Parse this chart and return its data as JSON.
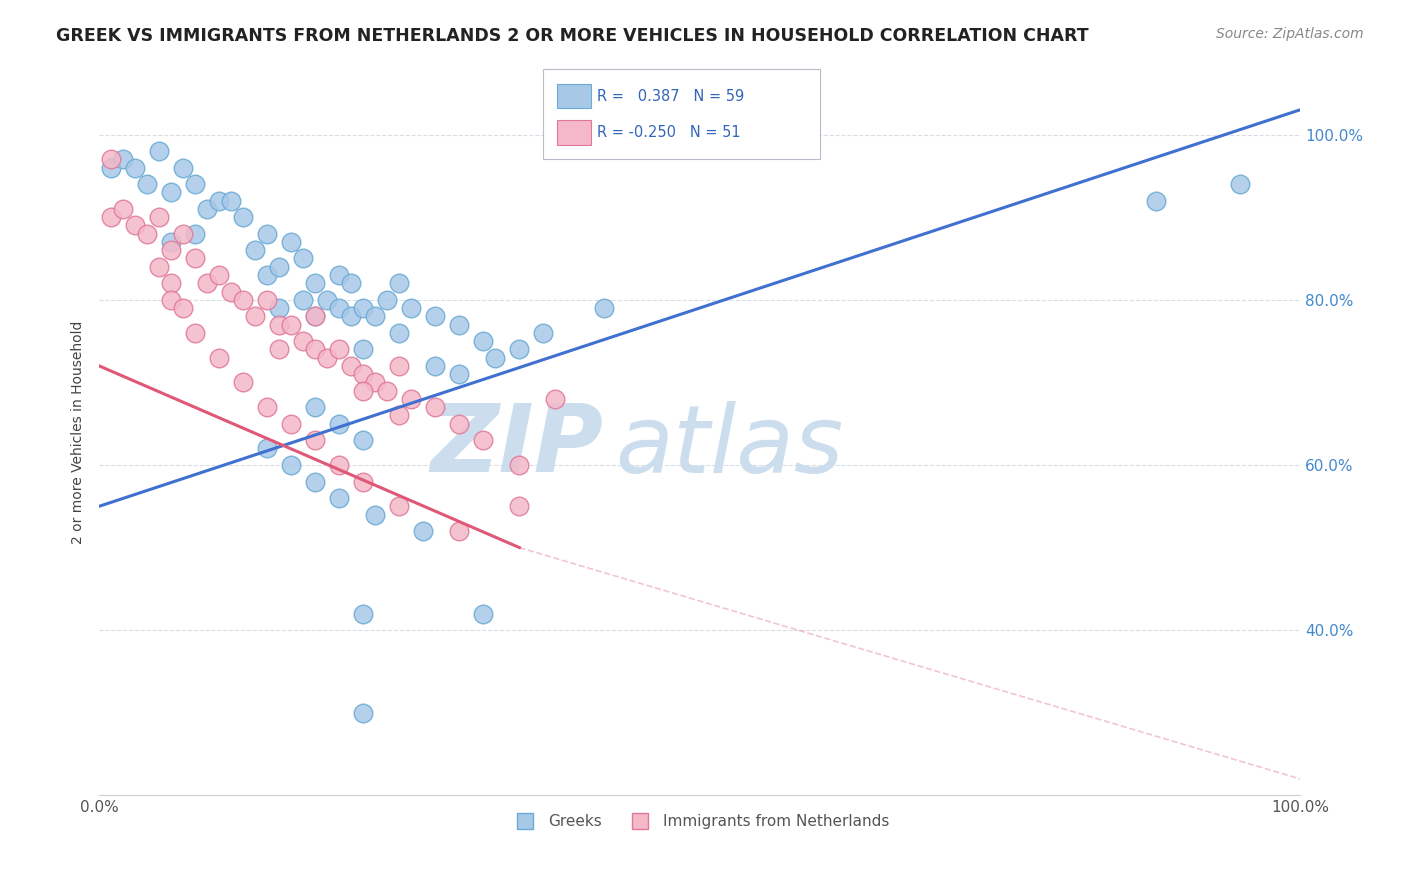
{
  "title": "GREEK VS IMMIGRANTS FROM NETHERLANDS 2 OR MORE VEHICLES IN HOUSEHOLD CORRELATION CHART",
  "source": "Source: ZipAtlas.com",
  "ylabel": "2 or more Vehicles in Household",
  "xlim": [
    0,
    100
  ],
  "ylim": [
    20,
    108
  ],
  "yticks": [
    40,
    60,
    80,
    100
  ],
  "ytick_labels": [
    "40.0%",
    "60.0%",
    "80.0%",
    "100.0%"
  ],
  "xticks": [
    0,
    100
  ],
  "xtick_labels": [
    "0.0%",
    "100.0%"
  ],
  "blue_R": 0.387,
  "blue_N": 59,
  "pink_R": -0.25,
  "pink_N": 51,
  "blue_color": "#a8c8e8",
  "blue_edge": "#6aaad4",
  "pink_color": "#f4b8c8",
  "pink_edge": "#e07898",
  "blue_line_color": "#4070d0",
  "pink_line_color": "#e05878",
  "watermark_color": "#ccdded",
  "legend_label_blue": "Greeks",
  "legend_label_pink": "Immigrants from Netherlands",
  "background_color": "#ffffff",
  "grid_color": "#d8dde8",
  "blue_points_x": [
    1,
    2,
    3,
    4,
    5,
    6,
    6,
    7,
    8,
    8,
    9,
    10,
    11,
    12,
    13,
    14,
    14,
    15,
    15,
    16,
    17,
    17,
    18,
    18,
    19,
    20,
    20,
    21,
    21,
    22,
    23,
    24,
    25,
    26,
    28,
    30,
    32,
    35,
    22,
    25,
    28,
    30,
    33,
    37,
    42,
    18,
    20,
    22,
    14,
    16,
    18,
    20,
    23,
    27,
    88,
    95,
    22,
    32,
    22
  ],
  "blue_points_y": [
    96,
    97,
    96,
    94,
    98,
    93,
    87,
    96,
    94,
    88,
    91,
    92,
    92,
    90,
    86,
    88,
    83,
    84,
    79,
    87,
    85,
    80,
    82,
    78,
    80,
    83,
    79,
    82,
    78,
    79,
    78,
    80,
    82,
    79,
    78,
    77,
    75,
    74,
    74,
    76,
    72,
    71,
    73,
    76,
    79,
    67,
    65,
    63,
    62,
    60,
    58,
    56,
    54,
    52,
    92,
    94,
    42,
    42,
    30
  ],
  "pink_points_x": [
    1,
    1,
    2,
    3,
    4,
    5,
    6,
    6,
    7,
    8,
    9,
    10,
    11,
    12,
    13,
    14,
    15,
    15,
    16,
    17,
    18,
    18,
    19,
    20,
    21,
    22,
    23,
    24,
    25,
    26,
    28,
    30,
    32,
    35,
    22,
    25,
    5,
    6,
    7,
    8,
    10,
    12,
    14,
    16,
    18,
    20,
    22,
    25,
    30,
    35,
    38
  ],
  "pink_points_y": [
    97,
    90,
    91,
    89,
    88,
    90,
    86,
    82,
    88,
    85,
    82,
    83,
    81,
    80,
    78,
    80,
    77,
    74,
    77,
    75,
    78,
    74,
    73,
    74,
    72,
    71,
    70,
    69,
    72,
    68,
    67,
    65,
    63,
    60,
    69,
    66,
    84,
    80,
    79,
    76,
    73,
    70,
    67,
    65,
    63,
    60,
    58,
    55,
    52,
    55,
    68
  ],
  "blue_trendline_x0": 0,
  "blue_trendline_x1": 100,
  "blue_trendline_y0": 55,
  "blue_trendline_y1": 103,
  "pink_trendline_x0": 0,
  "pink_trendline_x1": 35,
  "pink_trendline_y0": 72,
  "pink_trendline_y1": 50,
  "pink_dash_x0": 35,
  "pink_dash_x1": 100,
  "pink_dash_y0": 50,
  "pink_dash_y1": 22
}
